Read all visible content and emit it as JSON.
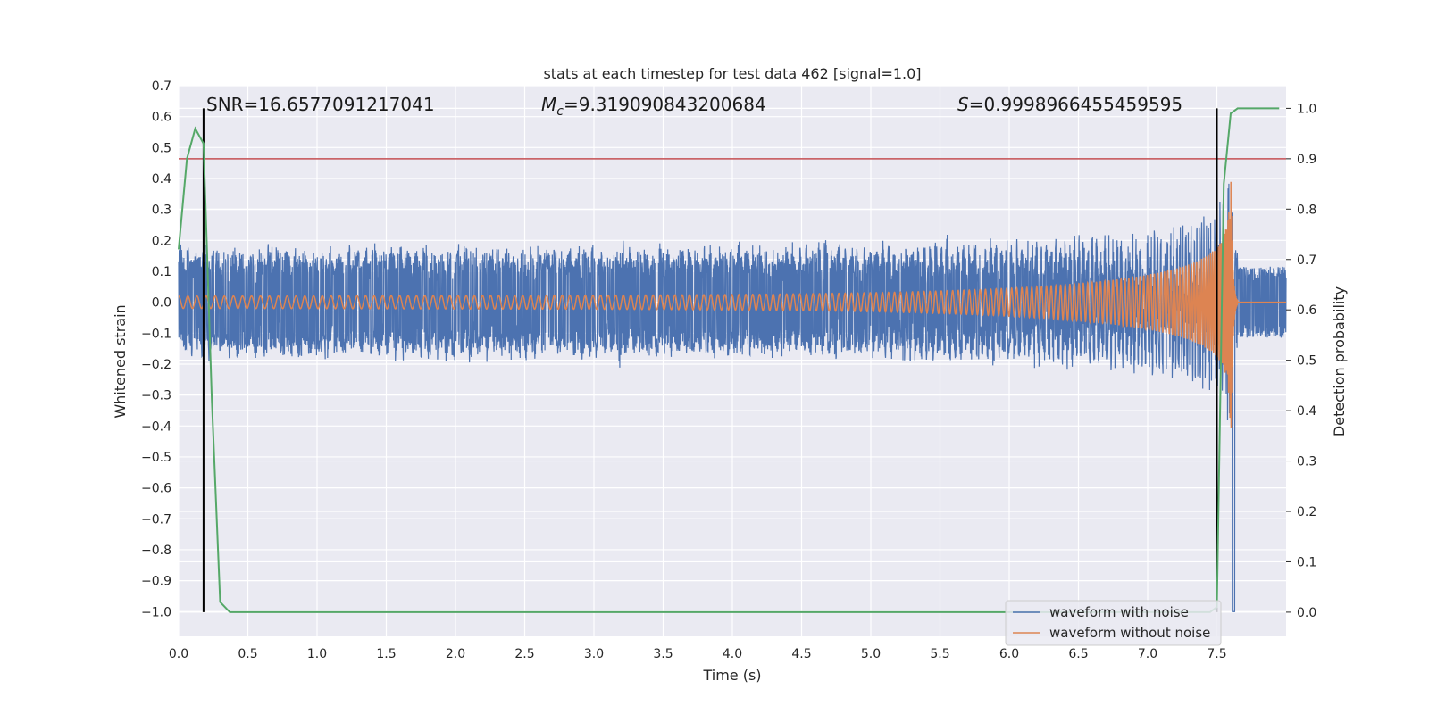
{
  "chart_data": {
    "type": "line",
    "title": "stats at each timestep for test data 462 [signal=1.0]",
    "xlabel": "Time (s)",
    "ylabel": "Whitened strain",
    "y2label": "Detection probability",
    "xlim": [
      0,
      8
    ],
    "ylim": [
      -1.08,
      0.7
    ],
    "y2lim": [
      -0.048,
      1.045
    ],
    "xticks": [
      0.0,
      0.5,
      1.0,
      1.5,
      2.0,
      2.5,
      3.0,
      3.5,
      4.0,
      4.5,
      5.0,
      5.5,
      6.0,
      6.5,
      7.0,
      7.5
    ],
    "yticks": [
      0.7,
      0.6,
      0.5,
      0.4,
      0.3,
      0.2,
      0.1,
      0.0,
      -0.1,
      -0.2,
      -0.3,
      -0.4,
      -0.5,
      -0.6,
      -0.7,
      -0.8,
      -0.9,
      -1.0
    ],
    "y2ticks": [
      1.0,
      0.9,
      0.8,
      0.7,
      0.6,
      0.5,
      0.4,
      0.3,
      0.2,
      0.1,
      0.0
    ],
    "grid": true,
    "legend_position": "bottom-right",
    "annotations": {
      "snr": "SNR=16.6577091217041",
      "mc_symbol": "M",
      "mc_sub": "c",
      "mc_value": "=9.319090843200684",
      "s_symbol": "S",
      "s_value": "=0.9998966455459595"
    },
    "series": [
      {
        "name": "waveform with noise",
        "color": "#4c72b0",
        "axis": "left",
        "envelope": {
          "start_amplitude": 0.14,
          "merger_time": 7.6,
          "noise_sigma": 0.06,
          "post_merger_amplitude": 0.1
        }
      },
      {
        "name": "waveform without noise",
        "color": "#dd8452",
        "axis": "left",
        "envelope": {
          "start_amplitude": 0.02,
          "start_frequency_hz": 15,
          "merger_time": 7.6,
          "peak_amplitude": 0.55
        }
      },
      {
        "name": "detection probability",
        "color": "#55a868",
        "axis": "right",
        "x": [
          0.0,
          0.06,
          0.12,
          0.18,
          0.24,
          0.3,
          0.37,
          0.5,
          1.0,
          2.0,
          3.0,
          4.0,
          5.0,
          6.0,
          7.0,
          7.45,
          7.5,
          7.55,
          7.6,
          7.65,
          7.75,
          7.95
        ],
        "y": [
          0.72,
          0.9,
          0.96,
          0.93,
          0.42,
          0.02,
          0.0,
          0.0,
          0.0,
          0.0,
          0.0,
          0.0,
          0.0,
          0.0,
          0.0,
          0.0,
          0.01,
          0.85,
          0.99,
          1.0,
          1.0,
          1.0
        ]
      }
    ],
    "threshold": {
      "axis": "right",
      "value": 0.9,
      "color": "#c44e52"
    },
    "vertical_markers": [
      0.18,
      7.5
    ],
    "marker_color": "#000000",
    "background": "#eaeaf2",
    "gridline_color": "#ffffff"
  }
}
